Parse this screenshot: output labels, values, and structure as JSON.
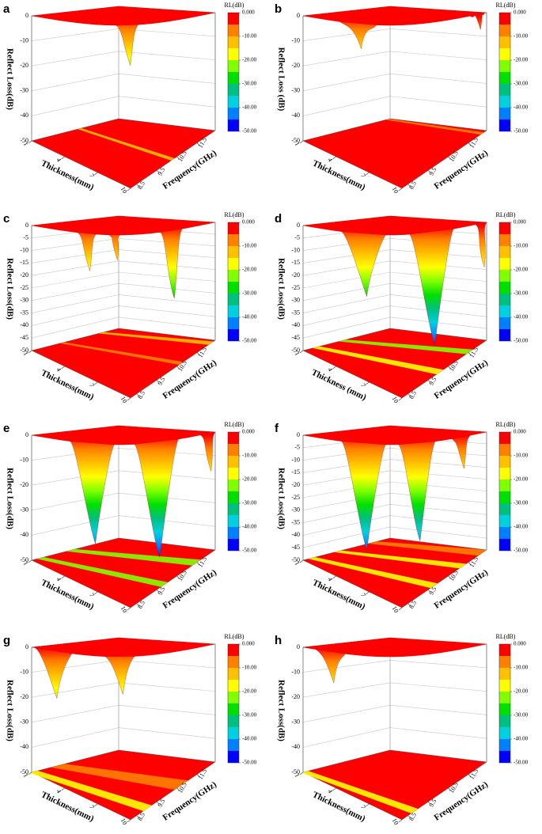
{
  "chart_data": [
    {
      "type": "surface",
      "label": "a",
      "zlabel": "Reflect Loss(dB)",
      "xlabel": "Thickness(mm)",
      "ylabel": "Frequency(GHz)",
      "zlim": [
        -50,
        0
      ],
      "zticks": [
        0,
        -10,
        -20,
        -30,
        -40,
        -50
      ],
      "xlim": [
        1,
        10
      ],
      "xticks": [
        1,
        4,
        7,
        10
      ],
      "ylim": [
        8.2,
        12.4
      ],
      "yticks": [
        8.5,
        9.5,
        10.5,
        11.5
      ],
      "colorbar": {
        "title": "RL(dB)",
        "lim": [
          -50,
          0
        ],
        "ticks": [
          {
            "value": 0,
            "label": "0.000"
          },
          {
            "value": -10,
            "label": "-10.00"
          },
          {
            "value": -20,
            "label": "-20.00"
          },
          {
            "value": -30,
            "label": "-30.00"
          },
          {
            "value": -40,
            "label": "-40.00"
          },
          {
            "value": -50,
            "label": "-50.00"
          }
        ],
        "colors": [
          "#ff0000",
          "#ff8000",
          "#ffc000",
          "#ffff00",
          "#80ff00",
          "#00e000",
          "#00c080",
          "#00d0e0",
          "#0080ff",
          "#0000ff"
        ]
      }
    },
    {
      "type": "surface",
      "label": "b",
      "zlabel": "Reflect Loss (dB)",
      "xlabel": "Thickness(mm)",
      "ylabel": "Frequency(GHz)",
      "zlim": [
        -50,
        0
      ],
      "zticks": [
        0,
        -10,
        -20,
        -30,
        -40,
        -50
      ],
      "xlim": [
        1,
        10
      ],
      "xticks": [
        1,
        4,
        7,
        10
      ],
      "ylim": [
        8.2,
        12.4
      ],
      "yticks": [
        8.5,
        9.5,
        10.5,
        11.5
      ],
      "colorbar": {
        "title": "RL(dB)",
        "lim": [
          -50,
          0
        ],
        "ticks": [
          {
            "value": 0,
            "label": "0.000"
          },
          {
            "value": -10,
            "label": "-10.00"
          },
          {
            "value": -20,
            "label": "-20.00"
          },
          {
            "value": -30,
            "label": "-30.00"
          },
          {
            "value": -40,
            "label": "-40.00"
          },
          {
            "value": -50,
            "label": "-50.00"
          }
        ],
        "colors": [
          "#ff0000",
          "#ff8000",
          "#ffc000",
          "#ffff00",
          "#80ff00",
          "#00e000",
          "#00c080",
          "#00d0e0",
          "#0080ff",
          "#0000ff"
        ]
      }
    },
    {
      "type": "surface",
      "label": "c",
      "zlabel": "Reflect Loss(dB)",
      "xlabel": "Thickness(mm)",
      "ylabel": "Frequency(GHz)",
      "zlim": [
        -50,
        0
      ],
      "zticks": [
        0,
        -5,
        -10,
        -15,
        -20,
        -25,
        -30,
        -35,
        -40,
        -45,
        -50
      ],
      "xlim": [
        1,
        10
      ],
      "xticks": [
        1,
        4,
        7,
        10
      ],
      "ylim": [
        8.2,
        12.4
      ],
      "yticks": [
        8.5,
        9.5,
        10.5,
        11.5
      ],
      "colorbar": {
        "title": "RL(dB)",
        "lim": [
          -50,
          0
        ],
        "ticks": [
          {
            "value": 0,
            "label": "0.000"
          },
          {
            "value": -10,
            "label": "-10.00"
          },
          {
            "value": -20,
            "label": "-20.00"
          },
          {
            "value": -30,
            "label": "-30.00"
          },
          {
            "value": -40,
            "label": "-40.00"
          },
          {
            "value": -50,
            "label": "-50.00"
          }
        ],
        "colors": [
          "#ff0000",
          "#ff8000",
          "#ffc000",
          "#ffff00",
          "#80ff00",
          "#00e000",
          "#00c080",
          "#00d0e0",
          "#0080ff",
          "#0000ff"
        ]
      }
    },
    {
      "type": "surface",
      "label": "d",
      "zlabel": "Reflect Loss(dB)",
      "xlabel": "Thickness (mm)",
      "ylabel": "Frequency(GHz)",
      "zlim": [
        -50,
        0
      ],
      "zticks": [
        0,
        -5,
        -10,
        -15,
        -20,
        -25,
        -30,
        -35,
        -40,
        -45,
        -50
      ],
      "xlim": [
        1,
        10
      ],
      "xticks": [
        1,
        4,
        7,
        10
      ],
      "ylim": [
        8.2,
        12.4
      ],
      "yticks": [
        8.5,
        9.5,
        10.5,
        11.5
      ],
      "colorbar": {
        "title": "RL(dB)",
        "lim": [
          -50,
          0
        ],
        "ticks": [
          {
            "value": 0,
            "label": "0.000"
          },
          {
            "value": -10,
            "label": "-10.00"
          },
          {
            "value": -20,
            "label": "-20.00"
          },
          {
            "value": -30,
            "label": "-30.00"
          },
          {
            "value": -40,
            "label": "-40.00"
          },
          {
            "value": -50,
            "label": "-50.00"
          }
        ],
        "colors": [
          "#ff0000",
          "#ff8000",
          "#ffc000",
          "#ffff00",
          "#80ff00",
          "#00e000",
          "#00c080",
          "#00d0e0",
          "#0080ff",
          "#0000ff"
        ]
      }
    },
    {
      "type": "surface",
      "label": "e",
      "zlabel": "Reflect Loss(dB)",
      "xlabel": "Thickness(mm)",
      "ylabel": "Frequency(GHz)",
      "zlim": [
        -50,
        0
      ],
      "zticks": [
        0,
        -10,
        -20,
        -30,
        -40,
        -50
      ],
      "xlim": [
        1,
        10
      ],
      "xticks": [
        1,
        4,
        7,
        10
      ],
      "ylim": [
        8.2,
        12.4
      ],
      "yticks": [
        8.5,
        9.5,
        10.5,
        11.5
      ],
      "colorbar": {
        "title": "RL(dB)",
        "lim": [
          -50,
          0
        ],
        "ticks": [
          {
            "value": 0,
            "label": "0.000"
          },
          {
            "value": -10,
            "label": "-10.00"
          },
          {
            "value": -20,
            "label": "-20.00"
          },
          {
            "value": -30,
            "label": "-30.00"
          },
          {
            "value": -40,
            "label": "-40.00"
          },
          {
            "value": -50,
            "label": "-50.00"
          }
        ],
        "colors": [
          "#ff0000",
          "#ff8000",
          "#ffc000",
          "#ffff00",
          "#80ff00",
          "#00e000",
          "#00c080",
          "#00d0e0",
          "#0080ff",
          "#0000ff"
        ]
      }
    },
    {
      "type": "surface",
      "label": "f",
      "zlabel": "Reflect Loss(dB)",
      "xlabel": "Thickness(mm)",
      "ylabel": "Frequency(GHz)",
      "zlim": [
        -50,
        0
      ],
      "zticks": [
        0,
        -5,
        -10,
        -15,
        -20,
        -25,
        -30,
        -35,
        -40,
        -45,
        -50
      ],
      "xlim": [
        1,
        10
      ],
      "xticks": [
        1,
        4,
        7,
        10
      ],
      "ylim": [
        8.2,
        12.4
      ],
      "yticks": [
        8.5,
        9.5,
        10.5,
        11.5
      ],
      "colorbar": {
        "title": "RL(dB)",
        "lim": [
          -50,
          0
        ],
        "ticks": [
          {
            "value": 0,
            "label": "0.000"
          },
          {
            "value": -10,
            "label": "-10.00"
          },
          {
            "value": -20,
            "label": "-20.00"
          },
          {
            "value": -30,
            "label": "-30.00"
          },
          {
            "value": -40,
            "label": "-40.00"
          },
          {
            "value": -50,
            "label": "-50.00"
          }
        ],
        "colors": [
          "#ff0000",
          "#ff8000",
          "#ffc000",
          "#ffff00",
          "#80ff00",
          "#00e000",
          "#00c080",
          "#00d0e0",
          "#0080ff",
          "#0000ff"
        ]
      }
    },
    {
      "type": "surface",
      "label": "g",
      "zlabel": "Reflect Loss(dB)",
      "xlabel": "Thickness(mm)",
      "ylabel": "Frequency(GHz)",
      "zlim": [
        -50,
        0
      ],
      "zticks": [
        0,
        -10,
        -20,
        -30,
        -40,
        -50
      ],
      "xlim": [
        1,
        10
      ],
      "xticks": [
        1,
        4,
        7,
        10
      ],
      "ylim": [
        8.2,
        12.4
      ],
      "yticks": [
        8.5,
        9.5,
        10.5,
        11.5
      ],
      "colorbar": {
        "title": "RL(dB)",
        "lim": [
          -50,
          0
        ],
        "ticks": [
          {
            "value": 0,
            "label": "0.000"
          },
          {
            "value": -10,
            "label": "-10.00"
          },
          {
            "value": -20,
            "label": "-20.00"
          },
          {
            "value": -30,
            "label": "-30.00"
          },
          {
            "value": -40,
            "label": "-40.00"
          },
          {
            "value": -50,
            "label": "-50.00"
          }
        ],
        "colors": [
          "#ff0000",
          "#ff8000",
          "#ffc000",
          "#ffff00",
          "#80ff00",
          "#00e000",
          "#00c080",
          "#00d0e0",
          "#0080ff",
          "#0000ff"
        ]
      }
    },
    {
      "type": "surface",
      "label": "h",
      "zlabel": "Reflect Loss(dB)",
      "xlabel": "Thickness(mm)",
      "ylabel": "Frequency(GHz)",
      "zlim": [
        -50,
        0
      ],
      "zticks": [
        0,
        -10,
        -20,
        -30,
        -40,
        -50
      ],
      "xlim": [
        1,
        10
      ],
      "xticks": [
        1,
        4,
        7,
        10
      ],
      "ylim": [
        8.2,
        12.4
      ],
      "yticks": [
        8.5,
        9.5,
        10.5,
        11.5
      ],
      "colorbar": {
        "title": "RL(dB)",
        "lim": [
          -50,
          0
        ],
        "ticks": [
          {
            "value": 0,
            "label": "0.000"
          },
          {
            "value": -10,
            "label": "-10.00"
          },
          {
            "value": -20,
            "label": "-20.00"
          },
          {
            "value": -30,
            "label": "-30.00"
          },
          {
            "value": -40,
            "label": "-40.00"
          },
          {
            "value": -50,
            "label": "-50.00"
          }
        ],
        "colors": [
          "#ff0000",
          "#ff8000",
          "#ffc000",
          "#ffff00",
          "#80ff00",
          "#00e000",
          "#00c080",
          "#00d0e0",
          "#0080ff",
          "#0000ff"
        ]
      }
    }
  ]
}
